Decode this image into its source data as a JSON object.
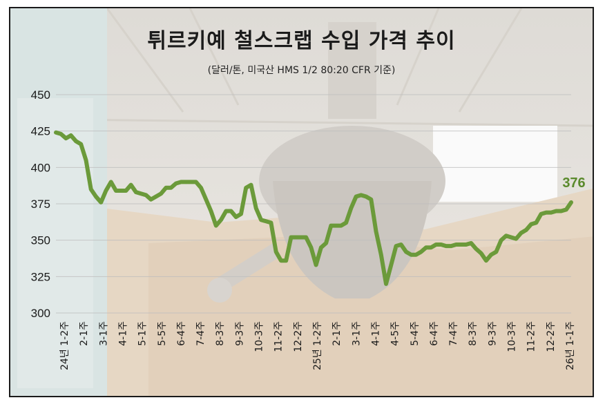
{
  "chart_data": {
    "type": "line",
    "title": "튀르키예 철스크랩 수입 가격 추이",
    "subtitle": "(달러/톤, 미국산 HMS 1/2 80:20 CFR 기준)",
    "xlabel": "",
    "ylabel": "",
    "ylim": [
      300,
      450
    ],
    "yticks": [
      300,
      325,
      350,
      375,
      400,
      425,
      450
    ],
    "grid": true,
    "line_color": "#6b9a3a",
    "label_color": "#5a8a2c",
    "x_tick_labels": [
      "24년 1-2주",
      "2-1주",
      "3-1주",
      "4-1주",
      "5-1주",
      "5-5주",
      "6-4주",
      "7-4주",
      "8-3주",
      "9-3주",
      "10-3주",
      "11-2주",
      "12-2주",
      "25년 1-2주",
      "2-1주",
      "3-1주",
      "4-1주",
      "4-5주",
      "5-4주",
      "6-4주",
      "7-4주",
      "8-3주",
      "9-3주",
      "10-3주",
      "11-2주",
      "12-2주",
      "26년 1-1주"
    ],
    "series": [
      {
        "values": [
          424,
          423,
          420,
          422,
          418,
          416,
          405,
          385,
          380,
          376,
          384,
          390,
          384,
          384,
          384,
          388,
          383,
          382,
          381,
          378,
          380,
          382,
          386,
          386,
          389,
          390,
          390,
          390,
          390,
          386,
          378,
          370,
          360,
          364,
          370,
          370,
          366,
          368,
          386,
          388,
          372,
          364,
          363,
          362,
          342,
          336,
          336,
          352,
          352,
          352,
          352,
          345,
          333,
          345,
          348,
          360,
          360,
          360,
          362,
          372,
          380,
          381,
          380,
          378,
          356,
          340,
          320,
          333,
          346,
          347,
          342,
          340,
          340,
          342,
          345,
          345,
          347,
          347,
          346,
          346,
          347,
          347,
          347,
          348,
          344,
          341,
          336,
          340,
          342,
          350,
          353,
          352,
          351,
          355,
          357,
          361,
          362,
          368,
          369,
          369,
          370,
          370,
          371,
          376
        ]
      }
    ],
    "last_value_label": "376"
  }
}
